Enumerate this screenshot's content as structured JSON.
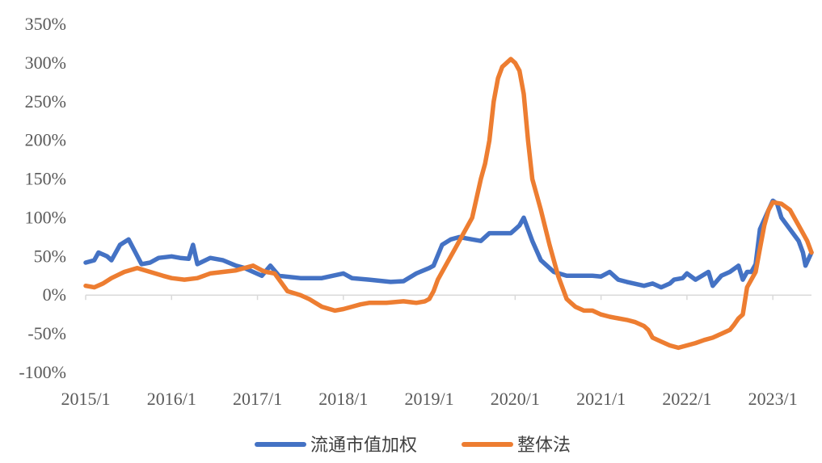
{
  "chart_data": {
    "type": "line",
    "title": "",
    "xlabel": "",
    "ylabel": "",
    "ylim": [
      -100,
      350
    ],
    "y_ticks": [
      -100,
      -50,
      0,
      50,
      100,
      150,
      200,
      250,
      300,
      350
    ],
    "y_tick_labels": [
      "-100%",
      "-50%",
      "0%",
      "50%",
      "100%",
      "150%",
      "200%",
      "250%",
      "300%",
      "350%"
    ],
    "x_range": [
      2015.0,
      2023.45
    ],
    "x_ticks": [
      "2015/1",
      "2016/1",
      "2017/1",
      "2018/1",
      "2019/1",
      "2020/1",
      "2021/1",
      "2022/1",
      "2023/1"
    ],
    "grid": false,
    "legend_position": "bottom",
    "series": [
      {
        "name": "流通市值加权",
        "color": "#4472C4",
        "x": [
          2015.0,
          2015.1,
          2015.15,
          2015.25,
          2015.3,
          2015.4,
          2015.5,
          2015.58,
          2015.65,
          2015.75,
          2015.85,
          2016.0,
          2016.1,
          2016.2,
          2016.25,
          2016.3,
          2016.45,
          2016.6,
          2016.75,
          2016.85,
          2016.95,
          2017.05,
          2017.15,
          2017.25,
          2017.5,
          2017.75,
          2018.0,
          2018.1,
          2018.3,
          2018.55,
          2018.7,
          2018.85,
          2019.0,
          2019.05,
          2019.15,
          2019.25,
          2019.35,
          2019.5,
          2019.6,
          2019.7,
          2019.8,
          2019.95,
          2020.0,
          2020.05,
          2020.1,
          2020.2,
          2020.3,
          2020.45,
          2020.6,
          2020.75,
          2020.9,
          2021.0,
          2021.1,
          2021.2,
          2021.3,
          2021.5,
          2021.6,
          2021.7,
          2021.8,
          2021.85,
          2021.95,
          2022.0,
          2022.1,
          2022.25,
          2022.3,
          2022.4,
          2022.5,
          2022.6,
          2022.65,
          2022.7,
          2022.75,
          2022.8,
          2022.85,
          2022.95,
          2023.0,
          2023.05,
          2023.1,
          2023.2,
          2023.3,
          2023.35,
          2023.38,
          2023.45
        ],
        "values": [
          42,
          45,
          55,
          50,
          45,
          65,
          72,
          55,
          40,
          42,
          48,
          50,
          48,
          47,
          65,
          40,
          48,
          45,
          38,
          35,
          30,
          25,
          38,
          25,
          22,
          22,
          28,
          22,
          20,
          17,
          18,
          28,
          35,
          38,
          65,
          72,
          75,
          72,
          70,
          80,
          80,
          80,
          85,
          90,
          100,
          70,
          45,
          30,
          25,
          25,
          25,
          24,
          30,
          20,
          17,
          12,
          15,
          10,
          15,
          20,
          22,
          28,
          20,
          30,
          12,
          25,
          30,
          38,
          20,
          30,
          30,
          40,
          85,
          110,
          122,
          118,
          100,
          85,
          70,
          55,
          38,
          55
        ]
      },
      {
        "name": "整体法",
        "color": "#ED7D31",
        "x": [
          2015.0,
          2015.1,
          2015.2,
          2015.3,
          2015.45,
          2015.6,
          2015.75,
          2015.9,
          2016.0,
          2016.15,
          2016.3,
          2016.45,
          2016.6,
          2016.75,
          2016.85,
          2016.95,
          2017.05,
          2017.1,
          2017.2,
          2017.35,
          2017.5,
          2017.6,
          2017.75,
          2017.9,
          2018.0,
          2018.1,
          2018.2,
          2018.3,
          2018.5,
          2018.7,
          2018.85,
          2018.95,
          2019.0,
          2019.05,
          2019.1,
          2019.2,
          2019.3,
          2019.4,
          2019.5,
          2019.6,
          2019.65,
          2019.7,
          2019.75,
          2019.8,
          2019.85,
          2019.9,
          2019.95,
          2020.0,
          2020.05,
          2020.1,
          2020.15,
          2020.2,
          2020.25,
          2020.3,
          2020.4,
          2020.5,
          2020.6,
          2020.65,
          2020.7,
          2020.8,
          2020.9,
          2021.0,
          2021.1,
          2021.2,
          2021.3,
          2021.4,
          2021.5,
          2021.55,
          2021.6,
          2021.7,
          2021.8,
          2021.9,
          2022.0,
          2022.1,
          2022.2,
          2022.3,
          2022.4,
          2022.5,
          2022.55,
          2022.6,
          2022.65,
          2022.7,
          2022.8,
          2022.85,
          2022.9,
          2022.95,
          2023.0,
          2023.1,
          2023.2,
          2023.3,
          2023.4,
          2023.45
        ],
        "values": [
          12,
          10,
          15,
          22,
          30,
          35,
          30,
          25,
          22,
          20,
          22,
          28,
          30,
          32,
          35,
          38,
          32,
          30,
          28,
          5,
          0,
          -5,
          -15,
          -20,
          -18,
          -15,
          -12,
          -10,
          -10,
          -8,
          -10,
          -8,
          -5,
          5,
          20,
          40,
          60,
          80,
          100,
          150,
          170,
          200,
          250,
          280,
          295,
          300,
          305,
          300,
          290,
          260,
          200,
          150,
          130,
          110,
          65,
          25,
          -5,
          -10,
          -15,
          -20,
          -20,
          -25,
          -28,
          -30,
          -32,
          -35,
          -40,
          -45,
          -55,
          -60,
          -65,
          -68,
          -65,
          -62,
          -58,
          -55,
          -50,
          -45,
          -38,
          -30,
          -25,
          10,
          30,
          60,
          90,
          110,
          120,
          118,
          110,
          90,
          70,
          55
        ]
      }
    ]
  }
}
